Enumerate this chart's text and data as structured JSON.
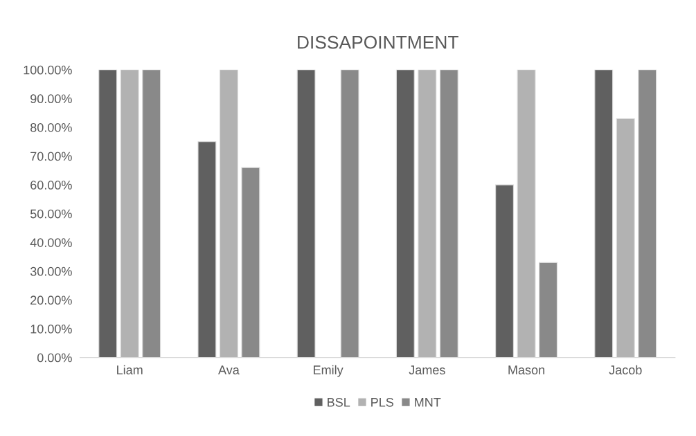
{
  "chart_data": {
    "type": "bar",
    "title": "DISSAPOINTMENT",
    "categories": [
      "Liam",
      "Ava",
      "Emily",
      "James",
      "Mason",
      "Jacob"
    ],
    "series": [
      {
        "name": "BSL",
        "color": "#606060",
        "values": [
          100,
          75,
          100,
          100,
          60,
          100
        ]
      },
      {
        "name": "PLS",
        "color": "#b2b2b2",
        "values": [
          100,
          100,
          null,
          100,
          100,
          83
        ]
      },
      {
        "name": "MNT",
        "color": "#898989",
        "values": [
          100,
          66,
          100,
          100,
          33,
          100
        ]
      }
    ],
    "ylim": [
      0,
      100
    ],
    "yticks": [
      {
        "value": 0,
        "label": "0.00%"
      },
      {
        "value": 10,
        "label": "10.00%"
      },
      {
        "value": 20,
        "label": "20.00%"
      },
      {
        "value": 30,
        "label": "30.00%"
      },
      {
        "value": 40,
        "label": "40.00%"
      },
      {
        "value": 50,
        "label": "50.00%"
      },
      {
        "value": 60,
        "label": "60.00%"
      },
      {
        "value": 70,
        "label": "70.00%"
      },
      {
        "value": 80,
        "label": "80.00%"
      },
      {
        "value": 90,
        "label": "90.00%"
      },
      {
        "value": 100,
        "label": "100.00%"
      }
    ],
    "grid": false,
    "legend": "bottom"
  }
}
